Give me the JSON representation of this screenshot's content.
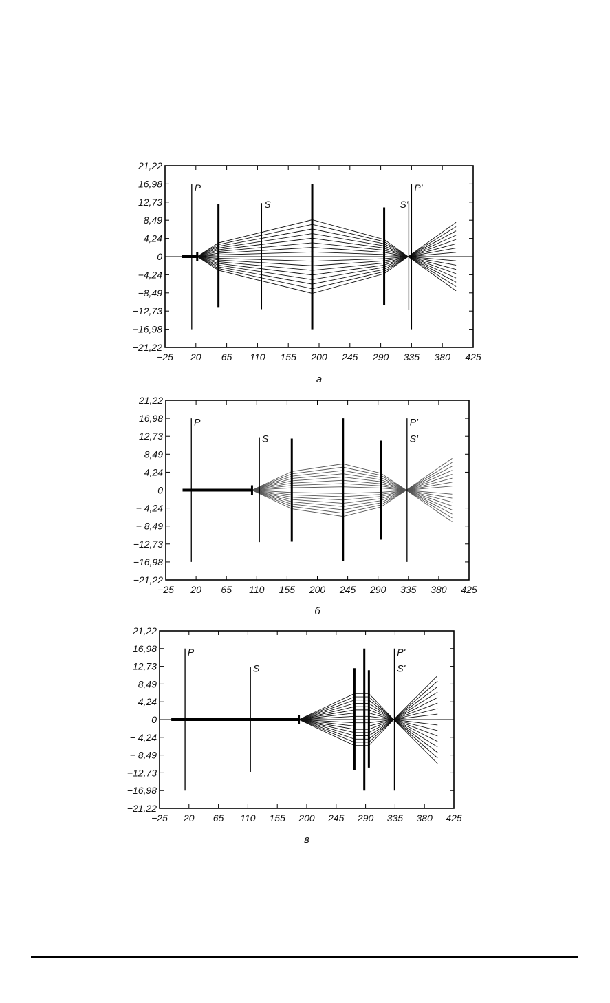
{
  "chart_data": [
    {
      "type": "line",
      "caption": "a",
      "xlim": [
        -25,
        425
      ],
      "ylim": [
        -21.22,
        21.22
      ],
      "x_ticks": [
        {
          "v": -25,
          "t": "−25"
        },
        {
          "v": 20,
          "t": "20"
        },
        {
          "v": 65,
          "t": "65"
        },
        {
          "v": 110,
          "t": "110"
        },
        {
          "v": 155,
          "t": "155"
        },
        {
          "v": 200,
          "t": "200"
        },
        {
          "v": 245,
          "t": "245"
        },
        {
          "v": 290,
          "t": "290"
        },
        {
          "v": 335,
          "t": "335"
        },
        {
          "v": 380,
          "t": "380"
        },
        {
          "v": 425,
          "t": "425"
        }
      ],
      "y_ticks": [
        {
          "v": 21.22,
          "t": "21,22"
        },
        {
          "v": 16.98,
          "t": "16,98"
        },
        {
          "v": 12.73,
          "t": "12,73"
        },
        {
          "v": 8.49,
          "t": "8,49"
        },
        {
          "v": 4.24,
          "t": "4,24"
        },
        {
          "v": 0,
          "t": "0"
        },
        {
          "v": -4.24,
          "t": "−4,24"
        },
        {
          "v": -8.49,
          "t": "−8,49"
        },
        {
          "v": -12.73,
          "t": "−12,73"
        },
        {
          "v": -16.98,
          "t": "−16,98"
        },
        {
          "v": -21.22,
          "t": "−21,22"
        }
      ],
      "elements": [
        {
          "x": 14,
          "top": 16.98,
          "bottom": -16.98,
          "weight": "thin"
        },
        {
          "x": 53,
          "top": 12.3,
          "bottom": -11.8,
          "weight": "thick"
        },
        {
          "x": 116,
          "top": 12.5,
          "bottom": -12.3,
          "weight": "thin"
        },
        {
          "x": 190,
          "top": 16.98,
          "bottom": -16.98,
          "weight": "thick"
        },
        {
          "x": 295,
          "top": 11.5,
          "bottom": -11.4,
          "weight": "thick"
        },
        {
          "x": 331,
          "top": 12.5,
          "bottom": -12.5,
          "weight": "thin"
        },
        {
          "x": 335,
          "top": 16.98,
          "bottom": -16.98,
          "weight": "thin"
        }
      ],
      "labels": [
        {
          "text": "P",
          "x": 18,
          "y": 15.3
        },
        {
          "text": "S",
          "x": 120,
          "y": 11.4
        },
        {
          "text": "S'",
          "x": 318,
          "y": 11.4
        },
        {
          "text": "P'",
          "x": 339,
          "y": 15.3
        }
      ],
      "source_segment": [
        0,
        22
      ],
      "rays": {
        "count_per_side": 8,
        "color": "#111111",
        "path": [
          [
            22,
            0
          ],
          [
            53,
            3.2
          ],
          [
            190,
            8.6
          ],
          [
            295,
            4.0
          ],
          [
            330,
            0
          ],
          [
            400,
            8.0
          ]
        ]
      }
    },
    {
      "type": "line",
      "caption": "б",
      "xlim": [
        -25,
        425
      ],
      "ylim": [
        -21.22,
        21.22
      ],
      "x_ticks": [
        {
          "v": -25,
          "t": "−25"
        },
        {
          "v": 20,
          "t": "20"
        },
        {
          "v": 65,
          "t": "65"
        },
        {
          "v": 110,
          "t": "110"
        },
        {
          "v": 155,
          "t": "155"
        },
        {
          "v": 200,
          "t": "200"
        },
        {
          "v": 245,
          "t": "245"
        },
        {
          "v": 290,
          "t": "290"
        },
        {
          "v": 335,
          "t": "335"
        },
        {
          "v": 380,
          "t": "380"
        },
        {
          "v": 425,
          "t": "425"
        }
      ],
      "y_ticks": [
        {
          "v": 21.22,
          "t": "21,22"
        },
        {
          "v": 16.98,
          "t": "16,98"
        },
        {
          "v": 12.73,
          "t": "12,73"
        },
        {
          "v": 8.49,
          "t": "8,49"
        },
        {
          "v": 4.24,
          "t": "4,24"
        },
        {
          "v": 0,
          "t": "0"
        },
        {
          "v": -4.24,
          "t": "− 4,24"
        },
        {
          "v": -8.49,
          "t": "− 8,49"
        },
        {
          "v": -12.73,
          "t": "−12,73"
        },
        {
          "v": -16.98,
          "t": "−16,98"
        },
        {
          "v": -21.22,
          "t": "−21,22"
        }
      ],
      "elements": [
        {
          "x": 13,
          "top": 16.98,
          "bottom": -16.98,
          "weight": "thin"
        },
        {
          "x": 114,
          "top": 12.5,
          "bottom": -12.3,
          "weight": "thin"
        },
        {
          "x": 162,
          "top": 12.2,
          "bottom": -12.2,
          "weight": "thick"
        },
        {
          "x": 238,
          "top": 16.98,
          "bottom": -16.8,
          "weight": "thick"
        },
        {
          "x": 294,
          "top": 11.7,
          "bottom": -11.7,
          "weight": "thick"
        },
        {
          "x": 333,
          "top": 16.98,
          "bottom": -16.98,
          "weight": "thin"
        }
      ],
      "labels": [
        {
          "text": "P",
          "x": 17,
          "y": 15.3
        },
        {
          "text": "S",
          "x": 118,
          "y": 11.4
        },
        {
          "text": "P'",
          "x": 337,
          "y": 15.3
        },
        {
          "text": "S'",
          "x": 337,
          "y": 11.4
        }
      ],
      "source_segment": [
        0,
        103
      ],
      "rays": {
        "count_per_side": 8,
        "color": "#555555",
        "path": [
          [
            103,
            0
          ],
          [
            162,
            4.4
          ],
          [
            238,
            6.2
          ],
          [
            294,
            4.0
          ],
          [
            332,
            0
          ],
          [
            400,
            7.5
          ]
        ]
      }
    },
    {
      "type": "line",
      "caption": "в",
      "xlim": [
        -25,
        425
      ],
      "ylim": [
        -21.22,
        21.22
      ],
      "x_ticks": [
        {
          "v": -25,
          "t": "−25"
        },
        {
          "v": 20,
          "t": "20"
        },
        {
          "v": 65,
          "t": "65"
        },
        {
          "v": 110,
          "t": "110"
        },
        {
          "v": 155,
          "t": "155"
        },
        {
          "v": 200,
          "t": "200"
        },
        {
          "v": 245,
          "t": "245"
        },
        {
          "v": 290,
          "t": "290"
        },
        {
          "v": 335,
          "t": "335"
        },
        {
          "v": 380,
          "t": "380"
        },
        {
          "v": 425,
          "t": "425"
        }
      ],
      "y_ticks": [
        {
          "v": 21.22,
          "t": "21,22"
        },
        {
          "v": 16.98,
          "t": "16,98"
        },
        {
          "v": 12.73,
          "t": "12,73"
        },
        {
          "v": 8.49,
          "t": "8,49"
        },
        {
          "v": 4.24,
          "t": "4,24"
        },
        {
          "v": 0,
          "t": "0"
        },
        {
          "v": -4.24,
          "t": "− 4,24"
        },
        {
          "v": -8.49,
          "t": "− 8,49"
        },
        {
          "v": -12.73,
          "t": "−12,73"
        },
        {
          "v": -16.98,
          "t": "−16,98"
        },
        {
          "v": -21.22,
          "t": "−21,22"
        }
      ],
      "elements": [
        {
          "x": 14,
          "top": 16.98,
          "bottom": -16.98,
          "weight": "thin"
        },
        {
          "x": 114,
          "top": 12.5,
          "bottom": -12.5,
          "weight": "thin"
        },
        {
          "x": 273,
          "top": 12.3,
          "bottom": -12.0,
          "weight": "thick"
        },
        {
          "x": 288,
          "top": 16.98,
          "bottom": -16.98,
          "weight": "thick"
        },
        {
          "x": 295,
          "top": 11.8,
          "bottom": -11.5,
          "weight": "thick"
        },
        {
          "x": 334,
          "top": 16.98,
          "bottom": -16.98,
          "weight": "thin"
        }
      ],
      "labels": [
        {
          "text": "P",
          "x": 18,
          "y": 15.3
        },
        {
          "text": "S",
          "x": 118,
          "y": 11.4
        },
        {
          "text": "P'",
          "x": 338,
          "y": 15.3
        },
        {
          "text": "S'",
          "x": 338,
          "y": 11.4
        }
      ],
      "source_segment": [
        -7,
        188
      ],
      "rays": {
        "count_per_side": 8,
        "color": "#111111",
        "path": [
          [
            188,
            0
          ],
          [
            273,
            6.2
          ],
          [
            295,
            6.2
          ],
          [
            333,
            0
          ],
          [
            400,
            10.5
          ]
        ]
      }
    }
  ]
}
